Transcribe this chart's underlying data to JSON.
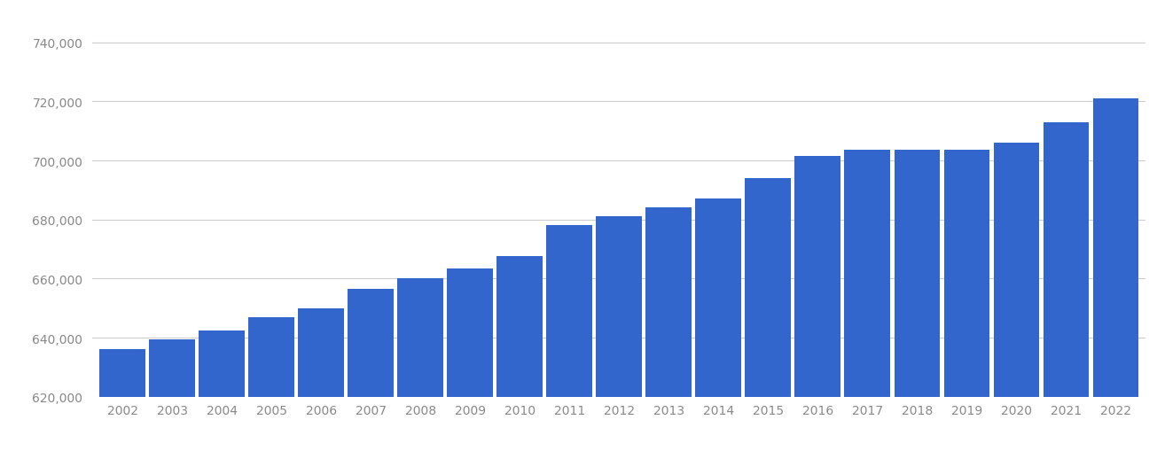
{
  "years": [
    2002,
    2003,
    2004,
    2005,
    2006,
    2007,
    2008,
    2009,
    2010,
    2011,
    2012,
    2013,
    2014,
    2015,
    2016,
    2017,
    2018,
    2019,
    2020,
    2021,
    2022
  ],
  "values": [
    636000,
    639500,
    642500,
    647000,
    650000,
    656500,
    660000,
    663500,
    667500,
    678000,
    681000,
    684000,
    687000,
    694000,
    701500,
    703500,
    703500,
    703500,
    706000,
    713000,
    721000
  ],
  "bar_color": "#3366CC",
  "background_color": "#ffffff",
  "grid_color": "#cccccc",
  "tick_color": "#888888",
  "ylim_min": 620000,
  "ylim_max": 750000,
  "ytick_step": 20000,
  "bar_width": 0.92,
  "figsize": [
    13.05,
    5.1
  ],
  "dpi": 100
}
